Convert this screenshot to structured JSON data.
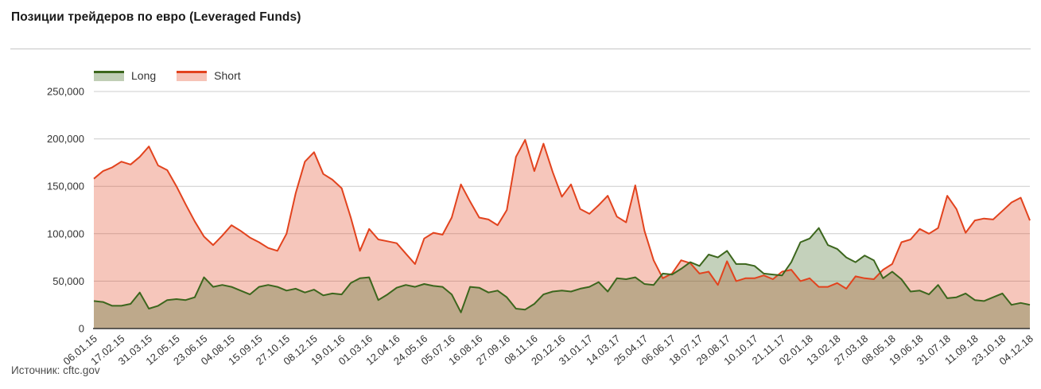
{
  "page": {
    "title": "Позиции трейдеров по евро (Leveraged Funds)",
    "source_note": "Источник: cftc.gov"
  },
  "chart_data": {
    "type": "area",
    "title": "Позиции трейдеров по евро (Leveraged Funds)",
    "legend_position": "top",
    "grid": true,
    "ylim": [
      0,
      250000
    ],
    "y_tick_step": 50000,
    "y_tick_labels": [
      "0",
      "50,000",
      "100,000",
      "150,000",
      "200,000",
      "250,000"
    ],
    "x_tick_every_n_samples": 3,
    "x_tick_labels": [
      "06.01.15",
      "17.02.15",
      "31.03.15",
      "12.05.15",
      "23.06.15",
      "04.08.15",
      "15.09.15",
      "27.10.15",
      "08.12.15",
      "19.01.16",
      "01.03.16",
      "12.04.16",
      "24.05.16",
      "05.07.16",
      "16.08.16",
      "27.09.16",
      "08.11.16",
      "20.12.16",
      "31.01.17",
      "14.03.17",
      "25.04.17",
      "06.06.17",
      "18.07.17",
      "29.08.17",
      "10.10.17",
      "21.11.17",
      "02.01.18",
      "13.02.18",
      "27.03.18",
      "08.05.18",
      "19.06.18",
      "31.07.18",
      "11.09.18",
      "23.10.18",
      "04.12.18"
    ],
    "axis_color": "#333333",
    "grid_color": "#cccccc",
    "label_color": "#333333",
    "series": [
      {
        "name": "Long",
        "line_color": "#3c661d",
        "fill_color": "#3c661d",
        "fill_opacity": 0.3,
        "values": [
          29000,
          28000,
          24000,
          24000,
          26000,
          38000,
          21000,
          24000,
          30000,
          31000,
          30000,
          33000,
          54000,
          44000,
          46000,
          44000,
          40000,
          36000,
          44000,
          46000,
          44000,
          40000,
          42000,
          38000,
          41000,
          35000,
          37000,
          36000,
          48000,
          53000,
          54000,
          30000,
          36000,
          43000,
          46000,
          44000,
          47000,
          45000,
          44000,
          36000,
          17000,
          44000,
          43000,
          38000,
          40000,
          33000,
          21000,
          20000,
          26000,
          36000,
          39000,
          40000,
          39000,
          42000,
          44000,
          49000,
          39000,
          53000,
          52000,
          54000,
          47000,
          46000,
          58000,
          57000,
          63000,
          70000,
          66000,
          78000,
          75000,
          82000,
          68000,
          68000,
          66000,
          58000,
          57000,
          56000,
          70000,
          91000,
          95000,
          106000,
          88000,
          84000,
          75000,
          70000,
          77000,
          72000,
          53000,
          60000,
          52000,
          39000,
          40000,
          36000,
          46000,
          32000,
          33000,
          37000,
          30000,
          29000,
          33000,
          37000,
          25000,
          27000,
          25000
        ]
      },
      {
        "name": "Short",
        "line_color": "#e2431e",
        "fill_color": "#e2431e",
        "fill_opacity": 0.3,
        "values": [
          158000,
          166000,
          170000,
          176000,
          173000,
          181000,
          192000,
          172000,
          167000,
          150000,
          131000,
          113000,
          97000,
          88000,
          98000,
          109000,
          103000,
          96000,
          91000,
          85000,
          82000,
          100000,
          143000,
          176000,
          186000,
          163000,
          157000,
          148000,
          117000,
          82000,
          105000,
          94000,
          92000,
          90000,
          79000,
          68000,
          95000,
          101000,
          99000,
          117000,
          152000,
          134000,
          117000,
          115000,
          109000,
          125000,
          181000,
          199000,
          166000,
          195000,
          165000,
          139000,
          152000,
          126000,
          121000,
          130000,
          140000,
          118000,
          112000,
          151000,
          103000,
          72000,
          53000,
          58000,
          72000,
          69000,
          58000,
          60000,
          46000,
          71000,
          50000,
          53000,
          53000,
          56000,
          52000,
          60000,
          62000,
          50000,
          53000,
          44000,
          44000,
          48000,
          42000,
          55000,
          53000,
          52000,
          62000,
          68000,
          91000,
          94000,
          105000,
          100000,
          106000,
          140000,
          126000,
          101000,
          114000,
          116000,
          115000,
          124000,
          133000,
          138000,
          114000
        ]
      }
    ]
  }
}
